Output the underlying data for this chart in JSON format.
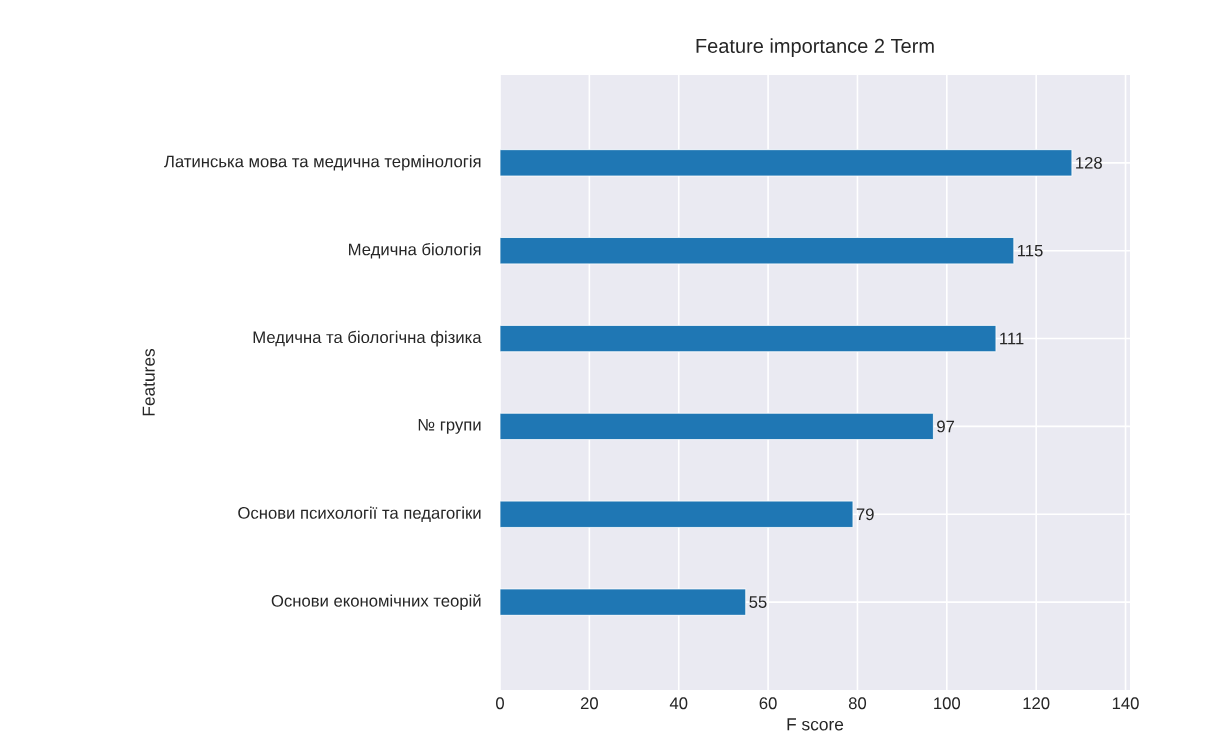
{
  "chart_data": {
    "type": "bar",
    "orientation": "horizontal",
    "title": "Feature importance 2 Term",
    "xlabel": "F score",
    "ylabel": "Features",
    "categories": [
      "Латинська мова та медична термінологія",
      "Медична біологія",
      "Медична та біологічна фізика",
      "№ групи",
      "Основи психології та педагогіки",
      "Основи економічних теорій"
    ],
    "values": [
      128,
      115,
      111,
      97,
      79,
      55
    ],
    "color": "#1f77b4",
    "data_labels": true,
    "xlim": [
      0,
      141
    ],
    "xticks": [
      0,
      20,
      40,
      60,
      80,
      100,
      120,
      140
    ],
    "grid": true
  }
}
